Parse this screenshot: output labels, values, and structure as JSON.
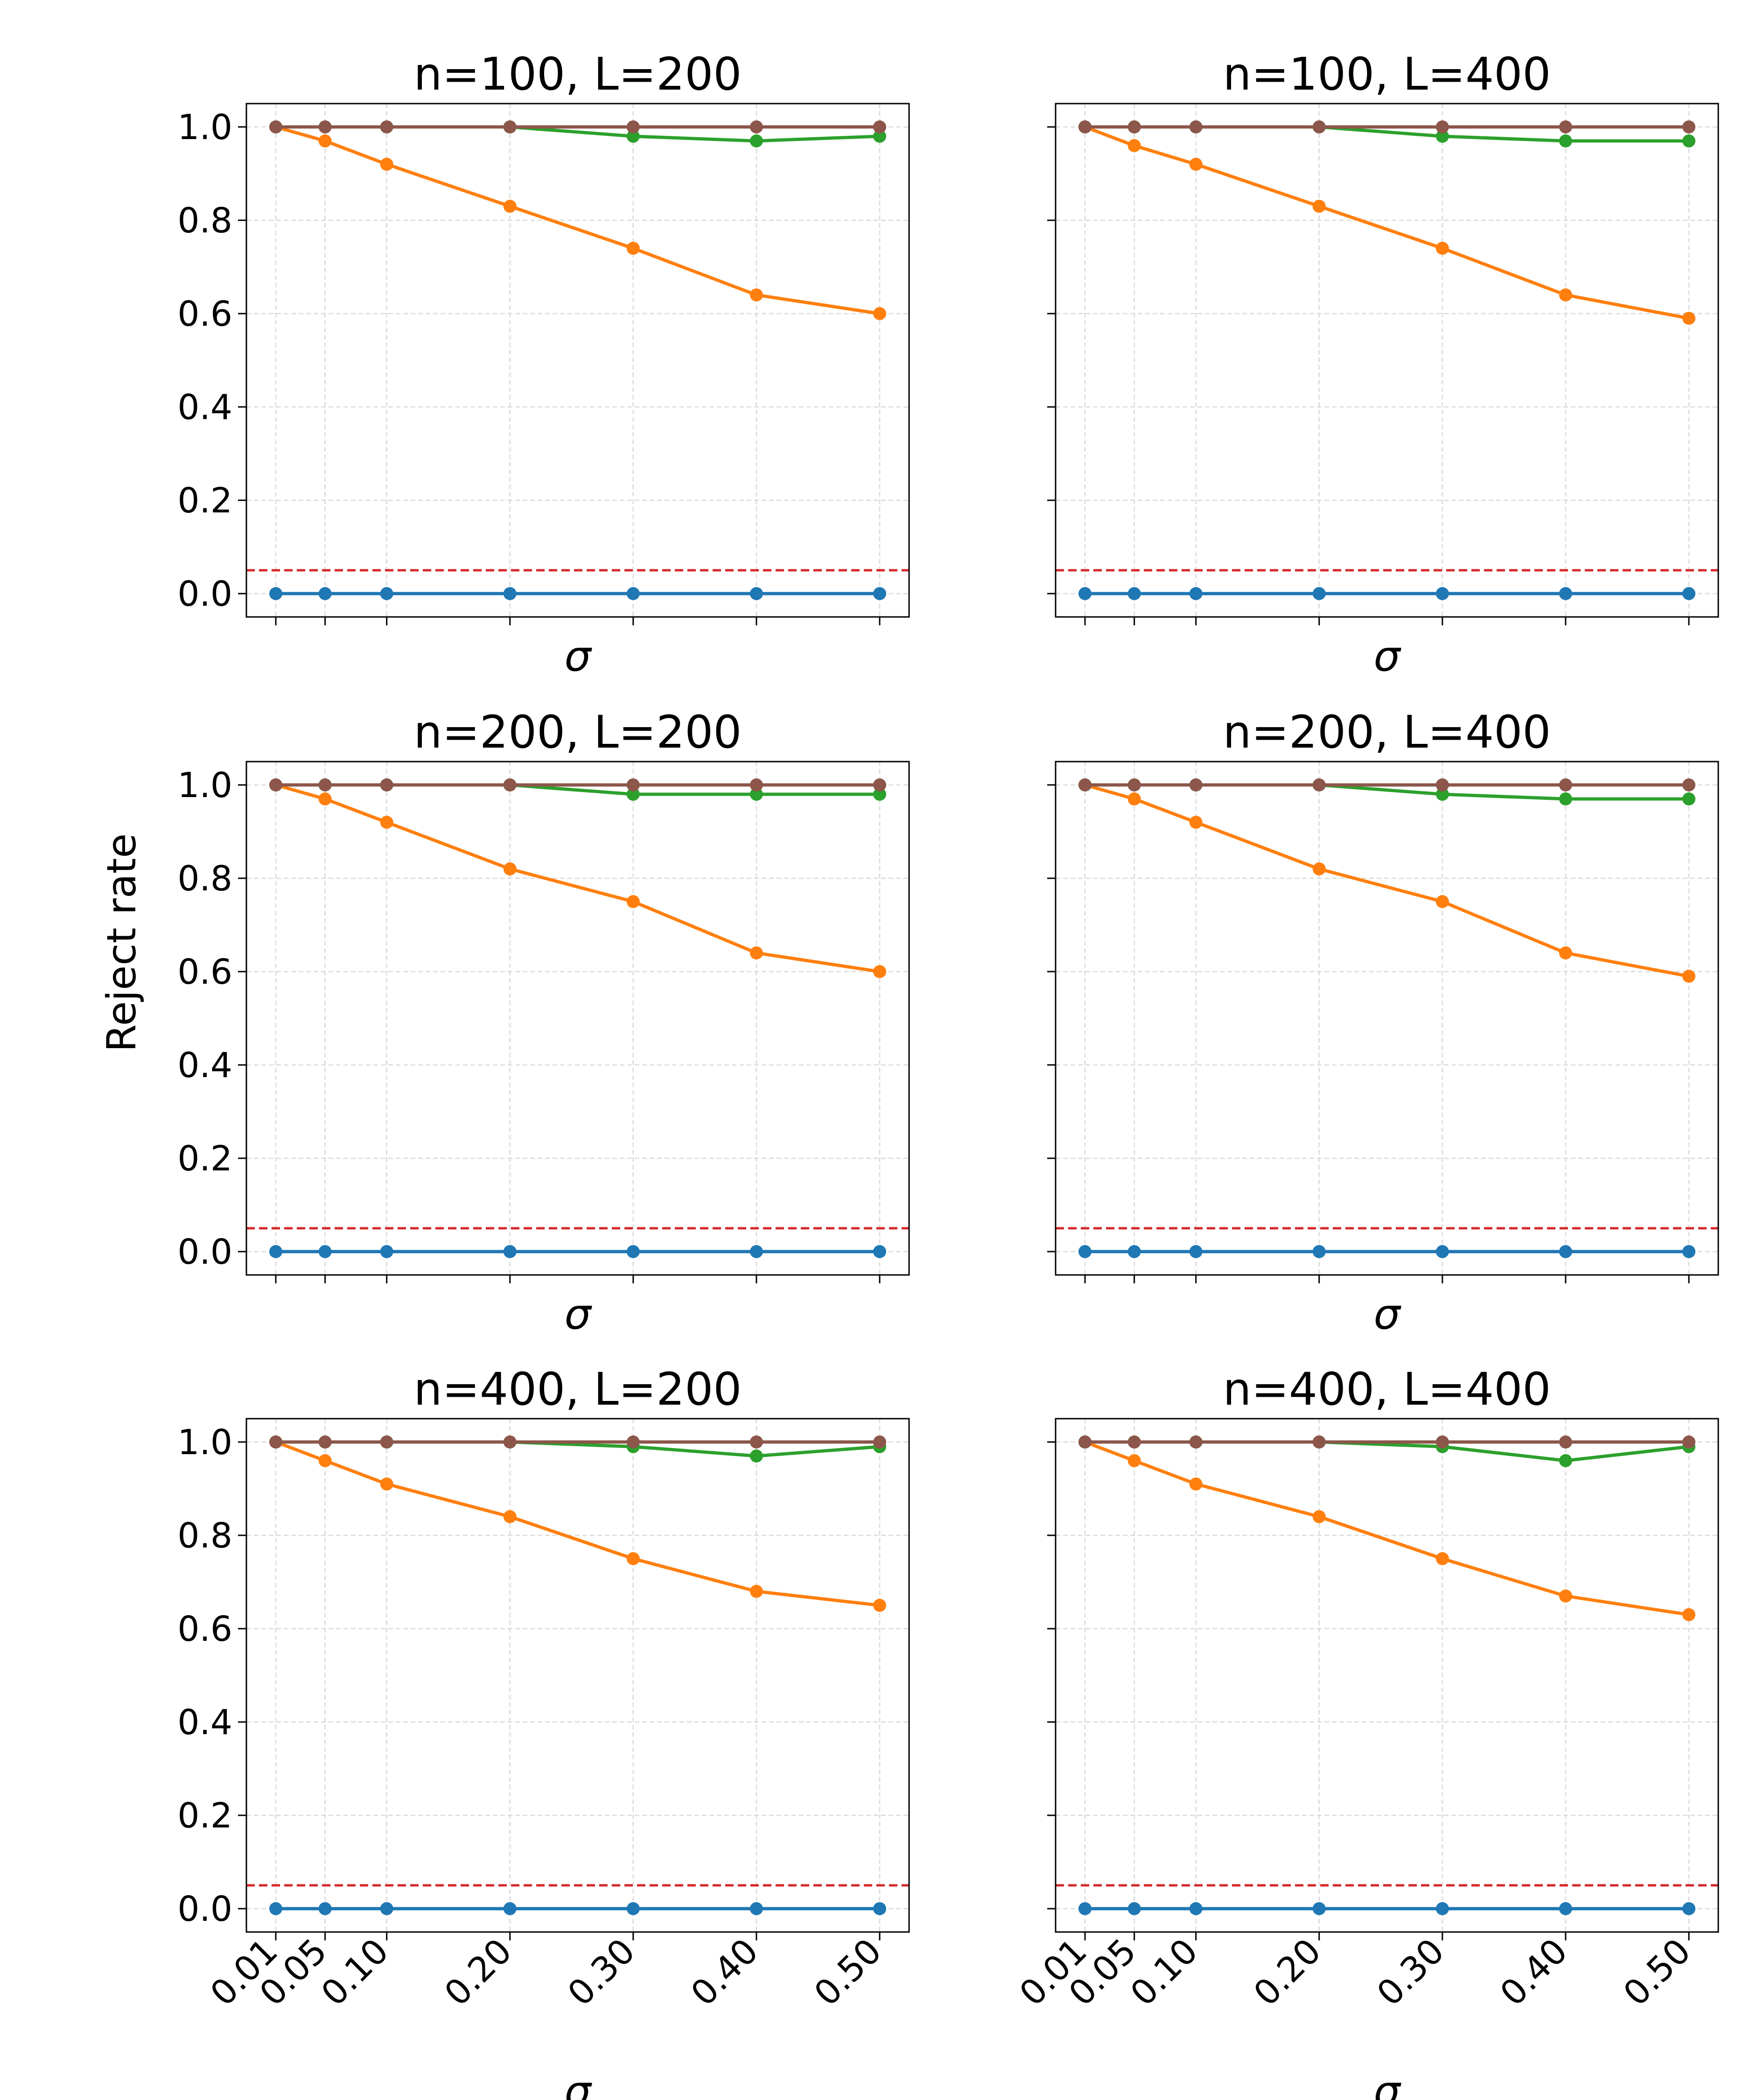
{
  "figure": {
    "ylabel": "Reject rate"
  },
  "colors": {
    "blue": "#1f77b4",
    "orange": "#ff7f0e",
    "green": "#2ca02c",
    "brown": "#8c564b",
    "threshold": "#d62728",
    "grid": "#d9d9d9",
    "axis": "#000000"
  },
  "chart_data": [
    {
      "type": "line",
      "title": "n=100, L=200",
      "xlabel": "σ",
      "ylabel": "Reject rate",
      "x": [
        0.01,
        0.05,
        0.1,
        0.2,
        0.3,
        0.4,
        0.5
      ],
      "xtick_labels": [
        "0.01",
        "0.05",
        "0.10",
        "0.20",
        "0.30",
        "0.40",
        "0.50"
      ],
      "show_xtick_labels": false,
      "show_ytick_labels": true,
      "ylim": [
        -0.05,
        1.05
      ],
      "yticks": [
        "0.0",
        "0.2",
        "0.4",
        "0.6",
        "0.8",
        "1.0"
      ],
      "threshold": 0.05,
      "grid": true,
      "series": [
        {
          "name": "blue",
          "color_key": "blue",
          "values": [
            0,
            0,
            0,
            0,
            0,
            0,
            0
          ]
        },
        {
          "name": "orange",
          "color_key": "orange",
          "values": [
            1.0,
            0.97,
            0.92,
            0.83,
            0.74,
            0.64,
            0.6
          ]
        },
        {
          "name": "green",
          "color_key": "green",
          "values": [
            1.0,
            1.0,
            1.0,
            1.0,
            0.98,
            0.97,
            0.98
          ]
        },
        {
          "name": "brown",
          "color_key": "brown",
          "values": [
            1.0,
            1.0,
            1.0,
            1.0,
            1.0,
            1.0,
            1.0
          ]
        }
      ]
    },
    {
      "type": "line",
      "title": "n=100, L=400",
      "xlabel": "σ",
      "ylabel": "",
      "x": [
        0.01,
        0.05,
        0.1,
        0.2,
        0.3,
        0.4,
        0.5
      ],
      "xtick_labels": [
        "0.01",
        "0.05",
        "0.10",
        "0.20",
        "0.30",
        "0.40",
        "0.50"
      ],
      "show_xtick_labels": false,
      "show_ytick_labels": false,
      "ylim": [
        -0.05,
        1.05
      ],
      "yticks": [
        "0.0",
        "0.2",
        "0.4",
        "0.6",
        "0.8",
        "1.0"
      ],
      "threshold": 0.05,
      "grid": true,
      "series": [
        {
          "name": "blue",
          "color_key": "blue",
          "values": [
            0,
            0,
            0,
            0,
            0,
            0,
            0
          ]
        },
        {
          "name": "orange",
          "color_key": "orange",
          "values": [
            1.0,
            0.96,
            0.92,
            0.83,
            0.74,
            0.64,
            0.59
          ]
        },
        {
          "name": "green",
          "color_key": "green",
          "values": [
            1.0,
            1.0,
            1.0,
            1.0,
            0.98,
            0.97,
            0.97
          ]
        },
        {
          "name": "brown",
          "color_key": "brown",
          "values": [
            1.0,
            1.0,
            1.0,
            1.0,
            1.0,
            1.0,
            1.0
          ]
        }
      ]
    },
    {
      "type": "line",
      "title": "n=200, L=200",
      "xlabel": "σ",
      "ylabel": "Reject rate",
      "x": [
        0.01,
        0.05,
        0.1,
        0.2,
        0.3,
        0.4,
        0.5
      ],
      "xtick_labels": [
        "0.01",
        "0.05",
        "0.10",
        "0.20",
        "0.30",
        "0.40",
        "0.50"
      ],
      "show_xtick_labels": false,
      "show_ytick_labels": true,
      "ylim": [
        -0.05,
        1.05
      ],
      "yticks": [
        "0.0",
        "0.2",
        "0.4",
        "0.6",
        "0.8",
        "1.0"
      ],
      "threshold": 0.05,
      "grid": true,
      "series": [
        {
          "name": "blue",
          "color_key": "blue",
          "values": [
            0,
            0,
            0,
            0,
            0,
            0,
            0
          ]
        },
        {
          "name": "orange",
          "color_key": "orange",
          "values": [
            1.0,
            0.97,
            0.92,
            0.82,
            0.75,
            0.64,
            0.6
          ]
        },
        {
          "name": "green",
          "color_key": "green",
          "values": [
            1.0,
            1.0,
            1.0,
            1.0,
            0.98,
            0.98,
            0.98
          ]
        },
        {
          "name": "brown",
          "color_key": "brown",
          "values": [
            1.0,
            1.0,
            1.0,
            1.0,
            1.0,
            1.0,
            1.0
          ]
        }
      ]
    },
    {
      "type": "line",
      "title": "n=200, L=400",
      "xlabel": "σ",
      "ylabel": "",
      "x": [
        0.01,
        0.05,
        0.1,
        0.2,
        0.3,
        0.4,
        0.5
      ],
      "xtick_labels": [
        "0.01",
        "0.05",
        "0.10",
        "0.20",
        "0.30",
        "0.40",
        "0.50"
      ],
      "show_xtick_labels": false,
      "show_ytick_labels": false,
      "ylim": [
        -0.05,
        1.05
      ],
      "yticks": [
        "0.0",
        "0.2",
        "0.4",
        "0.6",
        "0.8",
        "1.0"
      ],
      "threshold": 0.05,
      "grid": true,
      "series": [
        {
          "name": "blue",
          "color_key": "blue",
          "values": [
            0,
            0,
            0,
            0,
            0,
            0,
            0
          ]
        },
        {
          "name": "orange",
          "color_key": "orange",
          "values": [
            1.0,
            0.97,
            0.92,
            0.82,
            0.75,
            0.64,
            0.59
          ]
        },
        {
          "name": "green",
          "color_key": "green",
          "values": [
            1.0,
            1.0,
            1.0,
            1.0,
            0.98,
            0.97,
            0.97
          ]
        },
        {
          "name": "brown",
          "color_key": "brown",
          "values": [
            1.0,
            1.0,
            1.0,
            1.0,
            1.0,
            1.0,
            1.0
          ]
        }
      ]
    },
    {
      "type": "line",
      "title": "n=400, L=200",
      "xlabel": "σ",
      "ylabel": "Reject rate",
      "x": [
        0.01,
        0.05,
        0.1,
        0.2,
        0.3,
        0.4,
        0.5
      ],
      "xtick_labels": [
        "0.01",
        "0.05",
        "0.10",
        "0.20",
        "0.30",
        "0.40",
        "0.50"
      ],
      "show_xtick_labels": true,
      "show_ytick_labels": true,
      "ylim": [
        -0.05,
        1.05
      ],
      "yticks": [
        "0.0",
        "0.2",
        "0.4",
        "0.6",
        "0.8",
        "1.0"
      ],
      "threshold": 0.05,
      "grid": true,
      "series": [
        {
          "name": "blue",
          "color_key": "blue",
          "values": [
            0,
            0,
            0,
            0,
            0,
            0,
            0
          ]
        },
        {
          "name": "orange",
          "color_key": "orange",
          "values": [
            1.0,
            0.96,
            0.91,
            0.84,
            0.75,
            0.68,
            0.65
          ]
        },
        {
          "name": "green",
          "color_key": "green",
          "values": [
            1.0,
            1.0,
            1.0,
            1.0,
            0.99,
            0.97,
            0.99
          ]
        },
        {
          "name": "brown",
          "color_key": "brown",
          "values": [
            1.0,
            1.0,
            1.0,
            1.0,
            1.0,
            1.0,
            1.0
          ]
        }
      ]
    },
    {
      "type": "line",
      "title": "n=400, L=400",
      "xlabel": "σ",
      "ylabel": "",
      "x": [
        0.01,
        0.05,
        0.1,
        0.2,
        0.3,
        0.4,
        0.5
      ],
      "xtick_labels": [
        "0.01",
        "0.05",
        "0.10",
        "0.20",
        "0.30",
        "0.40",
        "0.50"
      ],
      "show_xtick_labels": true,
      "show_ytick_labels": false,
      "ylim": [
        -0.05,
        1.05
      ],
      "yticks": [
        "0.0",
        "0.2",
        "0.4",
        "0.6",
        "0.8",
        "1.0"
      ],
      "threshold": 0.05,
      "grid": true,
      "series": [
        {
          "name": "blue",
          "color_key": "blue",
          "values": [
            0,
            0,
            0,
            0,
            0,
            0,
            0
          ]
        },
        {
          "name": "orange",
          "color_key": "orange",
          "values": [
            1.0,
            0.96,
            0.91,
            0.84,
            0.75,
            0.67,
            0.63
          ]
        },
        {
          "name": "green",
          "color_key": "green",
          "values": [
            1.0,
            1.0,
            1.0,
            1.0,
            0.99,
            0.96,
            0.99
          ]
        },
        {
          "name": "brown",
          "color_key": "brown",
          "values": [
            1.0,
            1.0,
            1.0,
            1.0,
            1.0,
            1.0,
            1.0
          ]
        }
      ]
    }
  ]
}
